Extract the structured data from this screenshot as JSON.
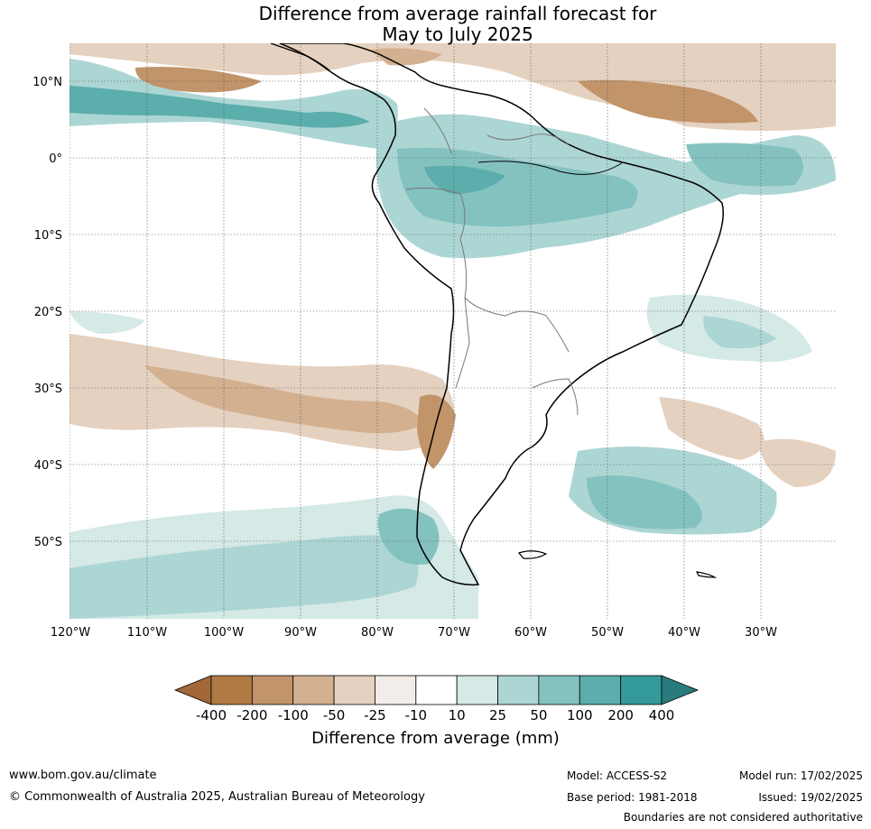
{
  "title": {
    "line1": "Difference from average rainfall forecast for",
    "line2": "May to July 2025"
  },
  "map": {
    "lat_labels": [
      "10°N",
      "0°",
      "10°S",
      "20°S",
      "30°S",
      "40°S",
      "50°S"
    ],
    "lon_labels": [
      "120°W",
      "110°W",
      "100°W",
      "90°W",
      "80°W",
      "70°W",
      "60°W",
      "50°W",
      "40°W",
      "30°W"
    ]
  },
  "colorbar": {
    "ticks": [
      "-400",
      "-200",
      "-100",
      "-50",
      "-25",
      "-10",
      "10",
      "25",
      "50",
      "100",
      "200",
      "400"
    ],
    "colors": [
      "#a3683a",
      "#b07a44",
      "#c1946a",
      "#d3b08f",
      "#e5d1bf",
      "#f2ede8",
      "#ffffff",
      "#d5e9e7",
      "#acd6d4",
      "#84c2c0",
      "#5baeab",
      "#33999a",
      "#2a7b7b"
    ],
    "label": "Difference from average (mm)"
  },
  "footer": {
    "website": "www.bom.gov.au/climate",
    "copyright": "© Commonwealth of Australia 2025, Australian Bureau of Meteorology",
    "model": "Model: ACCESS-S2",
    "base_period": "Base period: 1981-2018",
    "model_run": "Model run: 17/02/2025",
    "issued": "Issued: 19/02/2025",
    "boundaries_note": "Boundaries are not considered authoritative"
  }
}
